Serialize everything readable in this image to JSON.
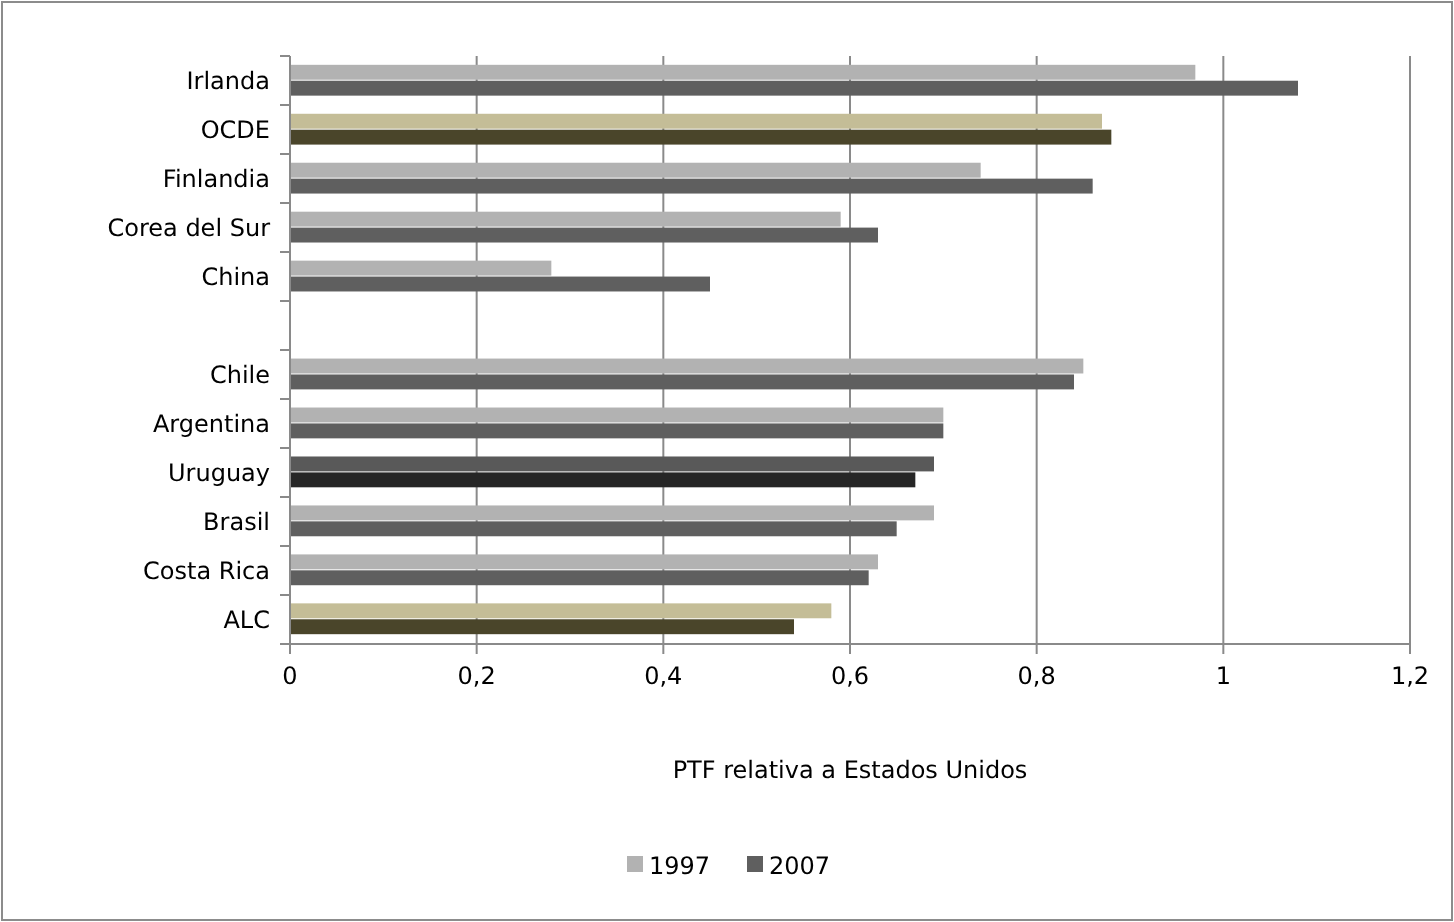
{
  "chart_data": {
    "type": "bar",
    "orientation": "horizontal",
    "xlabel": "PTF relativa a Estados Unidos",
    "categories": [
      "Irlanda",
      "OCDE",
      "Finlandia",
      "Corea del Sur",
      "China",
      null,
      "Chile",
      "Argentina",
      "Uruguay",
      "Brasil",
      "Costa Rica",
      "ALC"
    ],
    "series": [
      {
        "name": "1997",
        "color": "#b2b2b2",
        "colors": [
          "#b2b2b2",
          "#c4bd97",
          "#b2b2b2",
          "#b2b2b2",
          "#b2b2b2",
          null,
          "#b2b2b2",
          "#b2b2b2",
          "#595959",
          "#b2b2b2",
          "#b2b2b2",
          "#c4bd97"
        ],
        "values": [
          0.97,
          0.87,
          0.74,
          0.59,
          0.28,
          null,
          0.85,
          0.7,
          0.69,
          0.69,
          0.63,
          0.58
        ]
      },
      {
        "name": "2007",
        "color": "#5f5f5f",
        "colors": [
          "#5f5f5f",
          "#4a452a",
          "#5f5f5f",
          "#5f5f5f",
          "#5f5f5f",
          null,
          "#5f5f5f",
          "#5f5f5f",
          "#262626",
          "#5f5f5f",
          "#5f5f5f",
          "#4a452a"
        ],
        "values": [
          1.08,
          0.88,
          0.86,
          0.63,
          0.45,
          null,
          0.84,
          0.7,
          0.67,
          0.65,
          0.62,
          0.54
        ]
      }
    ],
    "xlim": [
      0,
      1.2
    ],
    "xticks": [
      0,
      {
        "value": 0.2,
        "label": "0,2"
      },
      {
        "value": 0.4,
        "label": "0,4"
      },
      {
        "value": 0.6,
        "label": "0,6"
      },
      {
        "value": 0.8,
        "label": "0,8"
      },
      1,
      {
        "value": 1.2,
        "label": "1,2"
      }
    ],
    "grid": "x",
    "legend": "bottom"
  }
}
